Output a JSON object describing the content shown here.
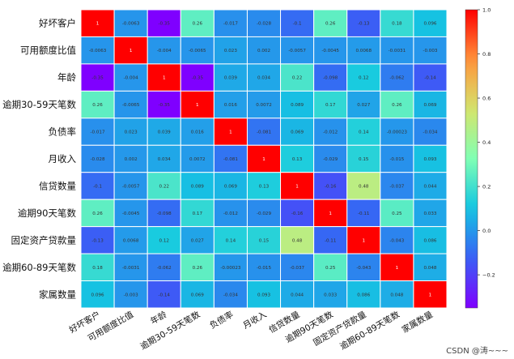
{
  "chart_data": {
    "type": "heatmap",
    "labels": [
      "好坏客户",
      "可用额度比值",
      "年龄",
      "逾期30-59天笔数",
      "负债率",
      "月收入",
      "信贷数量",
      "逾期90天笔数",
      "固定资产贷款量",
      "逾期60-89天笔数",
      "家属数量"
    ],
    "matrix": [
      [
        1,
        -0.0063,
        -0.35,
        0.26,
        -0.017,
        -0.028,
        -0.1,
        0.26,
        -0.13,
        0.18,
        0.096
      ],
      [
        -0.0063,
        1,
        -0.004,
        -0.0065,
        0.023,
        0.002,
        -0.0057,
        -0.0045,
        0.0068,
        -0.0031,
        -0.003
      ],
      [
        -0.35,
        -0.004,
        1,
        -0.35,
        0.039,
        0.034,
        0.22,
        -0.098,
        0.12,
        -0.062,
        -0.14
      ],
      [
        0.26,
        -0.0065,
        -0.35,
        1,
        0.016,
        0.0072,
        0.089,
        0.17,
        0.027,
        0.26,
        0.069
      ],
      [
        -0.017,
        0.023,
        0.039,
        0.016,
        1,
        -0.081,
        0.069,
        -0.012,
        0.14,
        -0.00023,
        -0.034
      ],
      [
        -0.028,
        0.002,
        0.034,
        0.0072,
        -0.081,
        1,
        0.13,
        -0.029,
        0.15,
        -0.015,
        0.093
      ],
      [
        -0.1,
        -0.0057,
        0.22,
        0.089,
        0.069,
        0.13,
        1,
        -0.16,
        0.48,
        -0.037,
        0.044
      ],
      [
        0.26,
        -0.0045,
        -0.098,
        0.17,
        -0.012,
        -0.029,
        -0.16,
        1,
        -0.11,
        0.25,
        0.033
      ],
      [
        -0.13,
        0.0068,
        0.12,
        0.027,
        0.14,
        0.15,
        0.48,
        -0.11,
        1,
        -0.043,
        0.086
      ],
      [
        0.18,
        -0.0031,
        -0.062,
        0.26,
        -0.00023,
        -0.015,
        -0.037,
        0.25,
        -0.043,
        1,
        0.048
      ],
      [
        0.096,
        -0.003,
        -0.14,
        0.069,
        -0.034,
        0.093,
        0.044,
        0.033,
        0.086,
        0.048,
        1
      ]
    ],
    "zlim": [
      -0.35,
      1
    ],
    "colormap": "rainbow",
    "colorbar_ticks": [
      1.0,
      0.8,
      0.6,
      0.4,
      0.2,
      0.0,
      -0.2
    ],
    "colorbar_tick_labels": [
      "1.0",
      "0.8",
      "0.6",
      "0.4",
      "0.2",
      "0.0",
      "−0.2"
    ],
    "grid_line_color": "#ffffff"
  },
  "watermark": "CSDN @涛~~~"
}
